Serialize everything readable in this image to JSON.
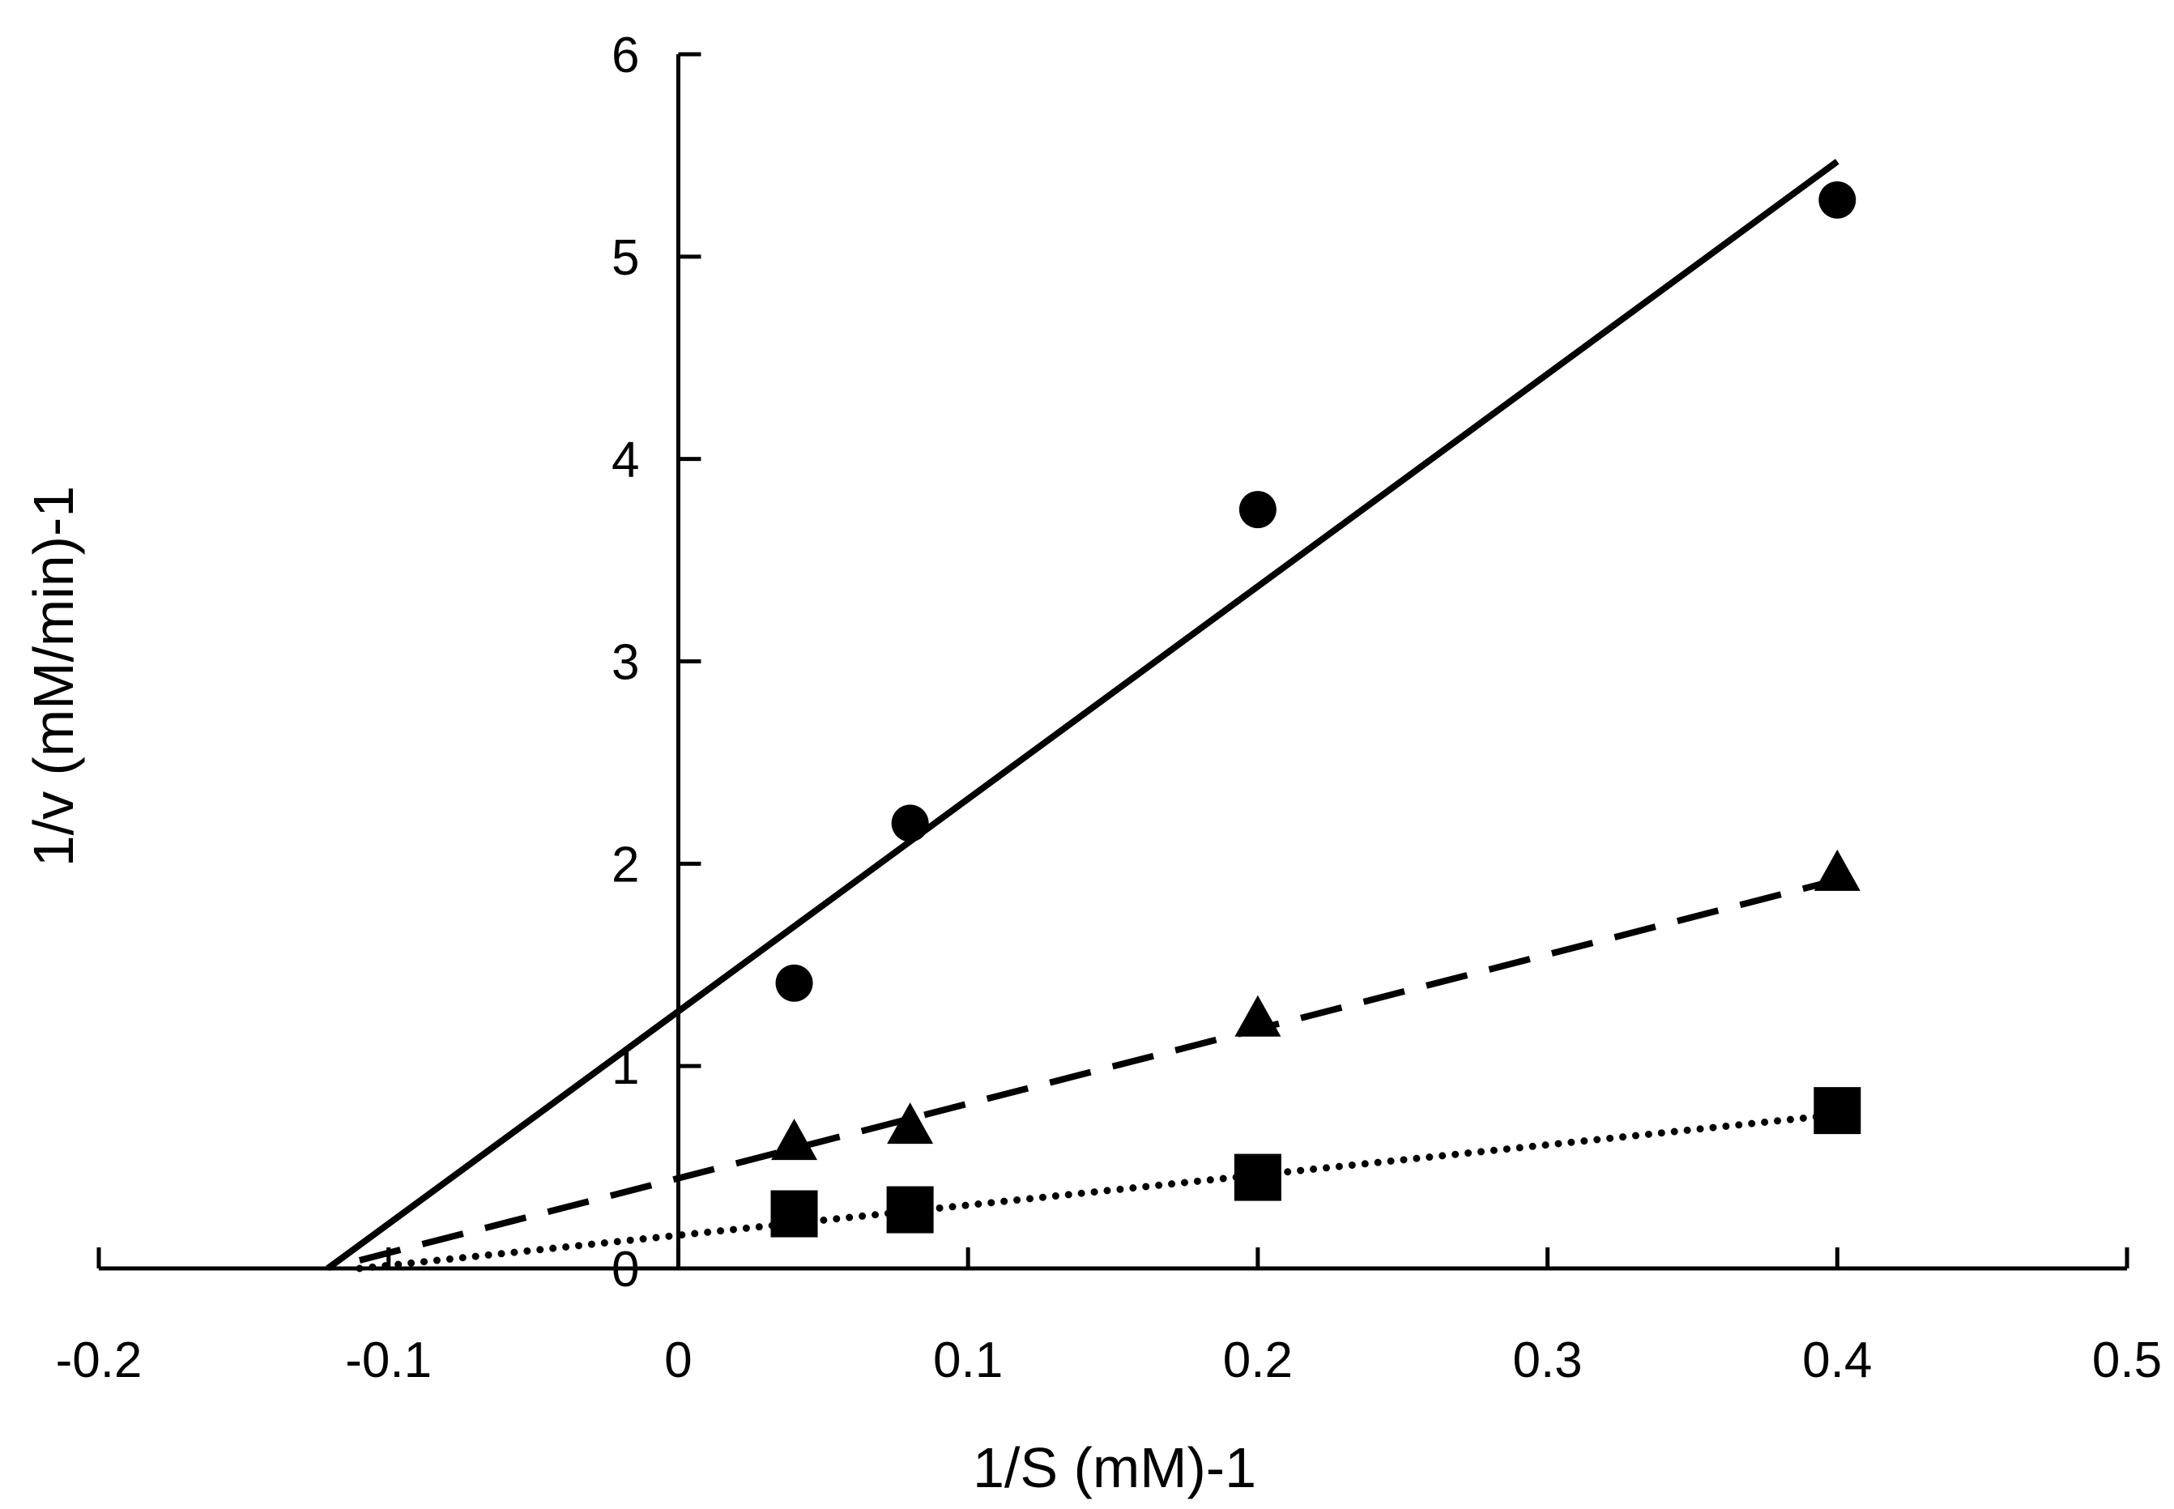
{
  "chart_data": {
    "type": "scatter",
    "title": "",
    "xlabel": "1/S (mM)-1",
    "ylabel": "1/v (mM/min)-1",
    "xlim": [
      -0.2,
      0.5
    ],
    "ylim": [
      0,
      6
    ],
    "x_ticks": [
      "-0.2",
      "-0.1",
      "0",
      "0.1",
      "0.2",
      "0.3",
      "0.4",
      "0.5"
    ],
    "y_ticks": [
      "0",
      "1",
      "2",
      "3",
      "4",
      "5",
      "6"
    ],
    "grid": false,
    "legend": "none",
    "series": [
      {
        "name": "circle series",
        "marker": "circle",
        "line_style": "solid",
        "x": [
          0.04,
          0.08,
          0.2,
          0.4
        ],
        "y": [
          1.41,
          2.2,
          3.75,
          5.28
        ],
        "trendline": {
          "x": [
            -0.121,
            0.4
          ],
          "y": [
            0.0,
            5.47
          ]
        }
      },
      {
        "name": "triangle series",
        "marker": "triangle",
        "line_style": "dashed",
        "x": [
          0.04,
          0.08,
          0.2,
          0.4
        ],
        "y": [
          0.62,
          0.7,
          1.23,
          1.95
        ],
        "trendline": {
          "x": [
            -0.11,
            0.4
          ],
          "y": [
            0.04,
            1.92
          ]
        }
      },
      {
        "name": "square series",
        "marker": "square",
        "line_style": "dotted",
        "x": [
          0.04,
          0.08,
          0.2,
          0.4
        ],
        "y": [
          0.27,
          0.29,
          0.45,
          0.78
        ],
        "trendline": {
          "x": [
            -0.11,
            0.4
          ],
          "y": [
            0.0,
            0.76
          ]
        }
      }
    ]
  }
}
